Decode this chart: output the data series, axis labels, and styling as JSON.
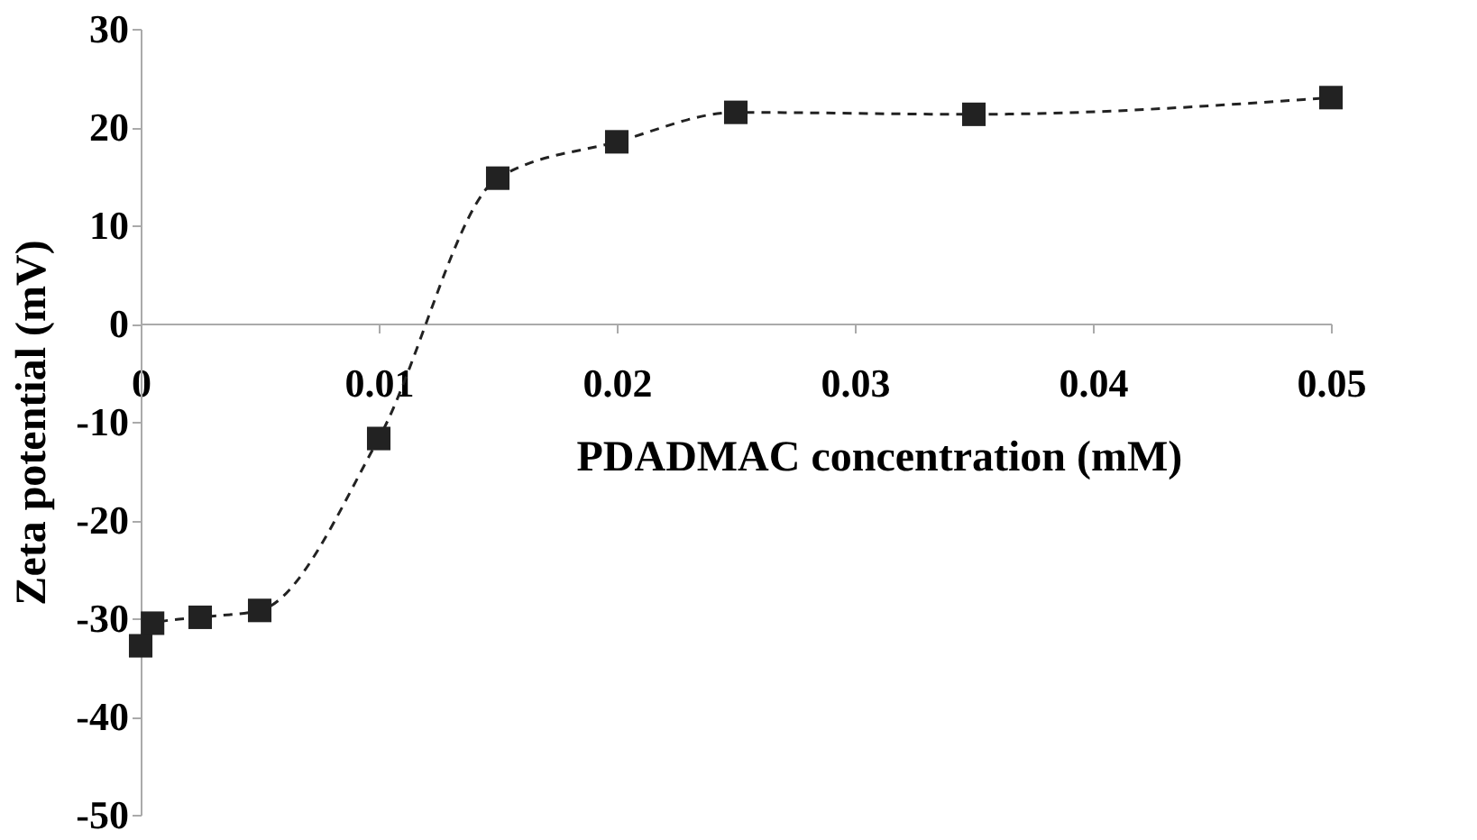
{
  "chart_data": {
    "type": "line",
    "xlabel": "PDADMAC concentration (mM)",
    "ylabel": "Zeta potential (mV)",
    "x": [
      0,
      0.0005,
      0.0025,
      0.005,
      0.01,
      0.015,
      0.02,
      0.025,
      0.035,
      0.05
    ],
    "series": [
      {
        "color": "#222222",
        "values": [
          -32.8,
          -30.5,
          -29.9,
          -29.2,
          -11.7,
          14.8,
          18.5,
          21.5,
          21.3,
          23.0
        ]
      }
    ],
    "xlim": [
      0,
      0.05
    ],
    "xticks": [
      0,
      0.01,
      0.02,
      0.03,
      0.04,
      0.05
    ],
    "ylim": [
      -50,
      30
    ],
    "yticks": [
      -50,
      -40,
      -30,
      -20,
      -10,
      0,
      10,
      20,
      30
    ],
    "marker": "square",
    "line_style": "dashed",
    "grid": false
  }
}
